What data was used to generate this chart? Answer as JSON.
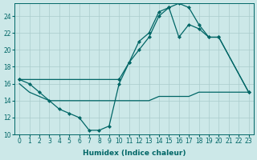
{
  "xlabel": "Humidex (Indice chaleur)",
  "background_color": "#cce8e8",
  "grid_color": "#aacccc",
  "line_color": "#006666",
  "xlim": [
    -0.5,
    23.5
  ],
  "ylim": [
    10,
    25.5
  ],
  "yticks": [
    10,
    12,
    14,
    16,
    18,
    20,
    22,
    24
  ],
  "xticks": [
    0,
    1,
    2,
    3,
    4,
    5,
    6,
    7,
    8,
    9,
    10,
    11,
    12,
    13,
    14,
    15,
    16,
    17,
    18,
    19,
    20,
    21,
    22,
    23
  ],
  "series1_x": [
    0,
    1,
    2,
    3,
    4,
    5,
    6,
    7,
    8,
    9,
    10,
    11,
    12,
    13,
    14,
    15,
    16,
    17,
    18,
    19,
    20,
    23
  ],
  "series1_y": [
    16.5,
    16.0,
    15.0,
    14.0,
    13.0,
    12.5,
    12.0,
    10.5,
    10.5,
    11.0,
    16.0,
    18.5,
    21.0,
    22.0,
    24.5,
    25.0,
    25.5,
    25.0,
    23.0,
    21.5,
    21.5,
    15.0
  ],
  "series2_x": [
    0,
    1,
    2,
    3,
    4,
    5,
    6,
    7,
    8,
    9,
    10,
    11,
    12,
    13,
    14,
    15,
    16,
    17,
    18,
    19,
    20,
    21,
    22,
    23
  ],
  "series2_y": [
    16.0,
    15.0,
    14.5,
    14.0,
    14.0,
    14.0,
    14.0,
    14.0,
    14.0,
    14.0,
    14.0,
    14.0,
    14.0,
    14.0,
    14.5,
    14.5,
    14.5,
    14.5,
    15.0,
    15.0,
    15.0,
    15.0,
    15.0,
    15.0
  ],
  "series3_x": [
    0,
    10,
    11,
    12,
    13,
    14,
    15,
    16,
    17,
    18,
    19,
    20,
    23
  ],
  "series3_y": [
    16.5,
    16.5,
    18.5,
    20.0,
    21.5,
    24.0,
    25.0,
    21.5,
    23.0,
    22.5,
    21.5,
    21.5,
    15.0
  ]
}
